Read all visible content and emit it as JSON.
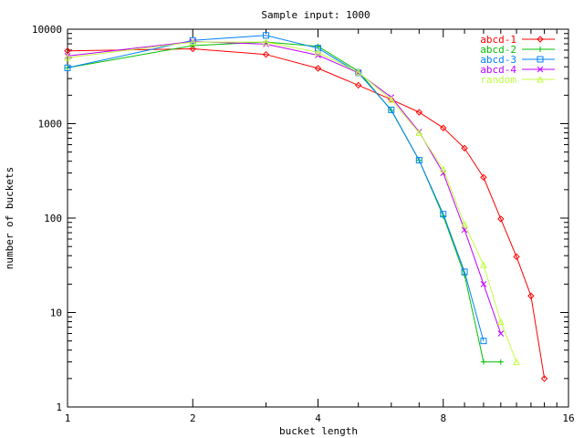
{
  "chart_data": {
    "type": "line",
    "title": "Sample input: 1000",
    "xlabel": "bucket length",
    "ylabel": "number of buckets",
    "x_scale": "log2",
    "y_scale": "log10",
    "xlim": [
      1,
      16
    ],
    "ylim": [
      1,
      10000
    ],
    "x_ticks": [
      {
        "value": 1,
        "label": "1"
      },
      {
        "value": 2,
        "label": "2"
      },
      {
        "value": 4,
        "label": "4"
      },
      {
        "value": 8,
        "label": "8"
      },
      {
        "value": 16,
        "label": "16"
      }
    ],
    "y_ticks": [
      {
        "value": 1,
        "label": "1"
      },
      {
        "value": 10,
        "label": "10"
      },
      {
        "value": 100,
        "label": "100"
      },
      {
        "value": 1000,
        "label": "1000"
      },
      {
        "value": 10000,
        "label": "10000"
      }
    ],
    "grid": false,
    "legend_position": "top-right",
    "series": [
      {
        "name": "abcd-1",
        "color": "#ff0000",
        "marker": "diamond",
        "x": [
          1,
          2,
          3,
          4,
          5,
          6,
          7,
          8,
          9,
          10,
          11,
          12,
          13,
          14
        ],
        "y": [
          5900,
          6200,
          5400,
          3850,
          2550,
          1800,
          1320,
          900,
          550,
          270,
          98,
          39,
          15,
          2
        ]
      },
      {
        "name": "abcd-2",
        "color": "#00c000",
        "marker": "plus",
        "x": [
          1,
          2,
          3,
          4,
          5,
          6,
          7,
          8,
          9,
          10,
          11
        ],
        "y": [
          3900,
          6700,
          7300,
          6600,
          3600,
          1380,
          410,
          105,
          25,
          3,
          3
        ]
      },
      {
        "name": "abcd-3",
        "color": "#0080ff",
        "marker": "square",
        "x": [
          1,
          2,
          3,
          4,
          5,
          6,
          7,
          8,
          9,
          10
        ],
        "y": [
          3900,
          7600,
          8600,
          6300,
          3450,
          1400,
          410,
          110,
          27,
          5
        ]
      },
      {
        "name": "abcd-4",
        "color": "#c000ff",
        "marker": "cross",
        "x": [
          1,
          2,
          3,
          4,
          5,
          6,
          7,
          8,
          9,
          10,
          11
        ],
        "y": [
          5200,
          7400,
          6950,
          5300,
          3450,
          1900,
          820,
          300,
          75,
          20,
          6
        ]
      },
      {
        "name": "random",
        "color": "#c0ff40",
        "marker": "triangle",
        "x": [
          1,
          2,
          3,
          4,
          5,
          6,
          7,
          8,
          9,
          10,
          11,
          12
        ],
        "y": [
          5000,
          7300,
          7300,
          5700,
          3500,
          1800,
          800,
          330,
          86,
          32,
          8,
          3
        ]
      }
    ]
  }
}
